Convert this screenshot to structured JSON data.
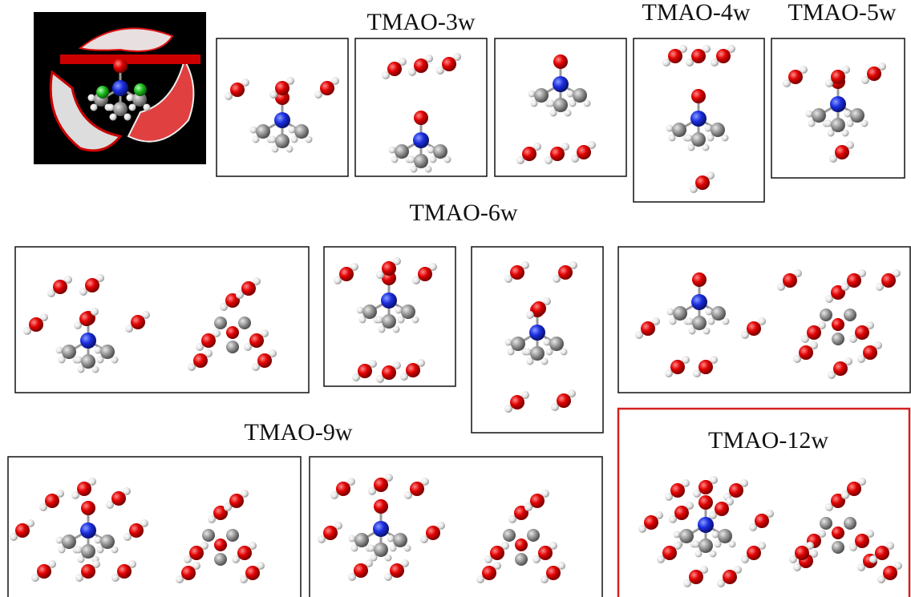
{
  "labels": {
    "tmao_3w": "TMAO-3w",
    "tmao_4w": "TMAO-4w",
    "tmao_5w": "TMAO-5w",
    "tmao_6w": "TMAO-6w",
    "tmao_9w": "TMAO-9w",
    "tmao_12w": "TMAO-12w"
  }
}
